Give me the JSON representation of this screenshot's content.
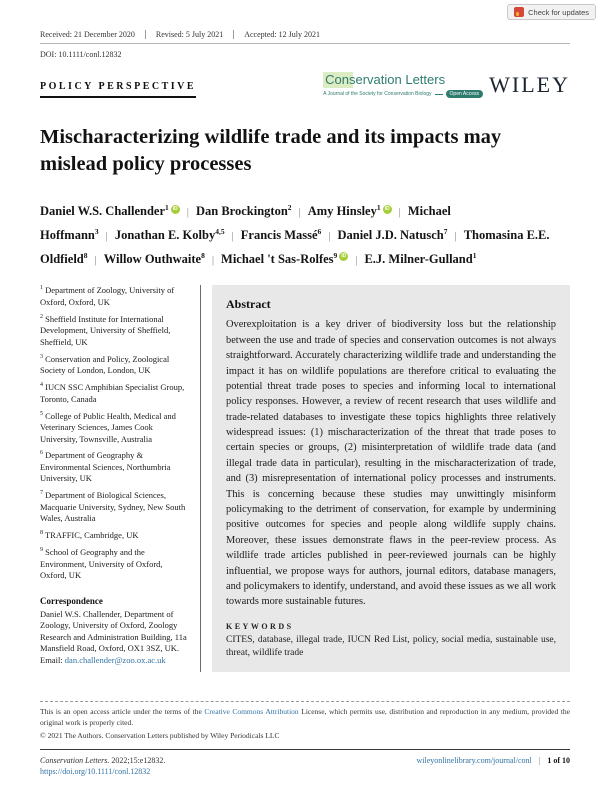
{
  "badge": {
    "label": "Check for updates"
  },
  "header": {
    "received": "Received: 21 December 2020",
    "revised": "Revised: 5 July 2021",
    "accepted": "Accepted: 12 July 2021",
    "doi": "DOI: 10.1111/conl.12832",
    "article_type": "POLICY PERSPECTIVE",
    "journal_logo": {
      "name": "Conservation Letters",
      "tagline": "A Journal of the Society for Conservation Biology",
      "open_access": "Open Access"
    },
    "publisher": "WILEY"
  },
  "title": "Mischaracterizing wildlife trade and its impacts may mislead policy processes",
  "authors": [
    {
      "name": "Daniel W.S. Challender",
      "sup": "1",
      "orcid": true
    },
    {
      "name": "Dan Brockington",
      "sup": "2",
      "orcid": false
    },
    {
      "name": "Amy Hinsley",
      "sup": "1",
      "orcid": true
    },
    {
      "name": "Michael Hoffmann",
      "sup": "3",
      "orcid": false
    },
    {
      "name": "Jonathan E. Kolby",
      "sup": "4,5",
      "orcid": false
    },
    {
      "name": "Francis Massé",
      "sup": "6",
      "orcid": false
    },
    {
      "name": "Daniel J.D. Natusch",
      "sup": "7",
      "orcid": false
    },
    {
      "name": "Thomasina E.E. Oldfield",
      "sup": "8",
      "orcid": false
    },
    {
      "name": "Willow Outhwaite",
      "sup": "8",
      "orcid": false
    },
    {
      "name": "Michael 't Sas-Rolfes",
      "sup": "9",
      "orcid": true
    },
    {
      "name": "E.J. Milner-Gulland",
      "sup": "1",
      "orcid": false
    }
  ],
  "orcid_icon_label": "iD",
  "affiliations": [
    {
      "sup": "1",
      "text": "Department of Zoology, University of Oxford, Oxford, UK"
    },
    {
      "sup": "2",
      "text": "Sheffield Institute for International Development, University of Sheffield, Sheffield, UK"
    },
    {
      "sup": "3",
      "text": "Conservation and Policy, Zoological Society of London, London, UK"
    },
    {
      "sup": "4",
      "text": "IUCN SSC Amphibian Specialist Group, Toronto, Canada"
    },
    {
      "sup": "5",
      "text": "College of Public Health, Medical and Veterinary Sciences, James Cook University, Townsville, Australia"
    },
    {
      "sup": "6",
      "text": "Department of Geography & Environmental Sciences, Northumbria University, UK"
    },
    {
      "sup": "7",
      "text": "Department of Biological Sciences, Macquarie University, Sydney, New South Wales, Australia"
    },
    {
      "sup": "8",
      "text": "TRAFFIC, Cambridge, UK"
    },
    {
      "sup": "9",
      "text": "School of Geography and the Environment, University of Oxford, Oxford, UK"
    }
  ],
  "correspondence": {
    "heading": "Correspondence",
    "text": "Daniel W.S. Challender, Department of Zoology, University of Oxford, Zoology Research and Administration Building, 11a Mansfield Road, Oxford, OX1 3SZ, UK.",
    "email_label": "Email: ",
    "email": "dan.challender@zoo.ox.ac.uk"
  },
  "abstract": {
    "heading": "Abstract",
    "body": "Overexploitation is a key driver of biodiversity loss but the relationship between the use and trade of species and conservation outcomes is not always straightforward. Accurately characterizing wildlife trade and understanding the impact it has on wildlife populations are therefore critical to evaluating the potential threat trade poses to species and informing local to international policy responses. However, a review of recent research that uses wildlife and trade-related databases to investigate these topics highlights three relatively widespread issues: (1) mischaracterization of the threat that trade poses to certain species or groups, (2) misinterpretation of wildlife trade data (and illegal trade data in particular), resulting in the mischaracterization of trade, and (3) misrepresentation of international policy processes and instruments. This is concerning because these studies may unwittingly misinform policymaking to the detriment of conservation, for example by undermining positive outcomes for species and people along wildlife supply chains. Moreover, these issues demonstrate flaws in the peer-review process. As wildlife trade articles published in peer-reviewed journals can be highly influential, we propose ways for authors, journal editors, database managers, and policymakers to identify, understand, and avoid these issues as we all work towards more sustainable futures.",
    "keywords_heading": "KEYWORDS",
    "keywords": "CITES, database, illegal trade, IUCN Red List, policy, social media, sustainable use, threat, wildlife trade"
  },
  "footer": {
    "license_pre": "This is an open access article under the terms of the ",
    "license_link": "Creative Commons Attribution",
    "license_post": " License, which permits use, distribution and reproduction in any medium, provided the original work is properly cited.",
    "copyright": "© 2021 The Authors. Conservation Letters published by Wiley Periodicals LLC",
    "citation_italic": "Conservation Letters.",
    "citation_rest": " 2022;15:e12832.",
    "doi_link": "https://doi.org/10.1111/conl.12832",
    "site_link": "wileyonlinelibrary.com/journal/conl",
    "page_info": "1 of 10"
  },
  "colors": {
    "journal_teal": "#2e7c6e",
    "link_blue": "#3173a5",
    "orcid_green": "#a6ce39",
    "abstract_bg": "#e8e8e8",
    "crossmark_red": "#d8453a"
  }
}
